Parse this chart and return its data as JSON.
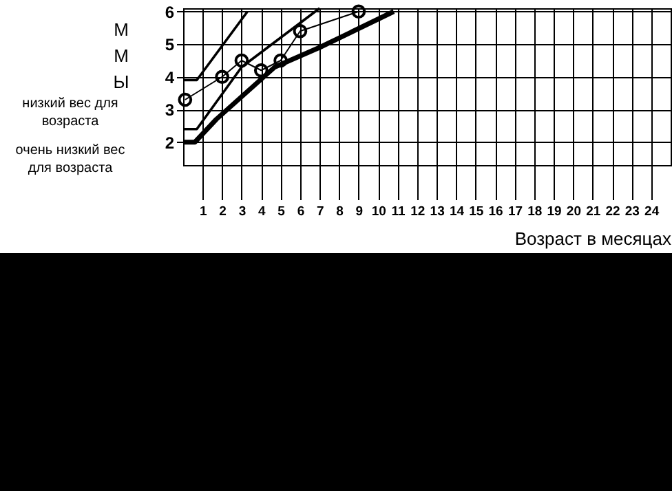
{
  "chart_data": {
    "type": "line",
    "ylabel": "ММЫ",
    "xlabel": "Возраст в месяцах",
    "annotations": [
      "низкий вес для возраста",
      "очень низкий вес для возраста"
    ],
    "xlim": [
      0,
      25
    ],
    "xticks": [
      1,
      2,
      3,
      4,
      5,
      6,
      7,
      8,
      9,
      10,
      11,
      12,
      13,
      14,
      15,
      16,
      17,
      18,
      19,
      20,
      21,
      22,
      23,
      24
    ],
    "ylim": [
      1.3,
      6.1
    ],
    "yticks": [
      2,
      3,
      4,
      5,
      6
    ],
    "grid": true,
    "series": [
      {
        "type": "line",
        "color": "#000000",
        "marker": "none",
        "line_style": "solid",
        "x": [
          0,
          0.7,
          3.3
        ],
        "values": [
          3.9,
          3.9,
          6.0
        ]
      },
      {
        "type": "line",
        "color": "#000000",
        "marker": "none",
        "line_style": "solid",
        "x": [
          0,
          0.7,
          3,
          7
        ],
        "values": [
          2.4,
          2.4,
          4.3,
          6.1
        ]
      },
      {
        "type": "line",
        "color": "#000000",
        "marker": "none",
        "line_style": "solid",
        "x": [
          0,
          0.6,
          1.7,
          4.7,
          7,
          10.8
        ],
        "values": [
          2.0,
          2.0,
          2.7,
          4.3,
          4.9,
          6.0
        ]
      },
      {
        "type": "line",
        "color": "#000000",
        "marker": "circle",
        "line_style": "solid",
        "x": [
          0.1,
          2,
          3,
          4,
          5,
          6,
          9
        ],
        "values": [
          3.3,
          4.0,
          4.5,
          4.2,
          4.5,
          5.4,
          6.0
        ]
      }
    ]
  }
}
